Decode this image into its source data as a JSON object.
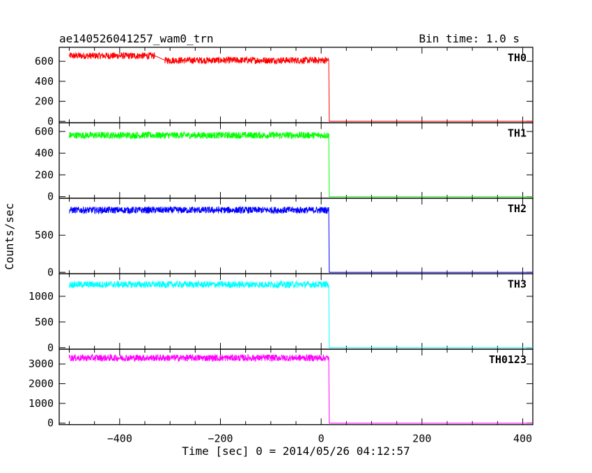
{
  "chart_data": {
    "type": "line",
    "title": "ae140526041257_wam0_trn",
    "subtitle": "Bin time: 1.0 s",
    "xlabel": "Time [sec] 0 = 2014/05/26 04:12:57",
    "ylabel": "Counts/sec",
    "xlim": [
      -520,
      420
    ],
    "x_ticks": [
      "−400",
      "−200",
      "0",
      "200",
      "400"
    ],
    "x_tick_values": [
      -400,
      -200,
      0,
      200,
      400
    ],
    "grid": false,
    "panels": [
      {
        "name": "TH0",
        "color": "#ff0000",
        "ylim": [
          -15,
          740
        ],
        "y_ticks": [
          "0",
          "200",
          "400",
          "600"
        ],
        "y_tick_values": [
          0,
          200,
          400,
          600
        ],
        "series": {
          "name": "TH0",
          "x": [
            -500,
            -330,
            -310,
            15,
            16,
            420
          ],
          "y": [
            655,
            655,
            610,
            610,
            0,
            0
          ]
        }
      },
      {
        "name": "TH1",
        "color": "#00ff00",
        "ylim": [
          -15,
          680
        ],
        "y_ticks": [
          "0",
          "200",
          "400",
          "600"
        ],
        "y_tick_values": [
          0,
          200,
          400,
          600
        ],
        "series": {
          "name": "TH1",
          "x": [
            -500,
            15,
            16,
            420
          ],
          "y": [
            565,
            565,
            0,
            0
          ]
        }
      },
      {
        "name": "TH2",
        "color": "#0000ff",
        "ylim": [
          -20,
          1000
        ],
        "y_ticks": [
          "0",
          "500"
        ],
        "y_tick_values": [
          0,
          500
        ],
        "series": {
          "name": "TH2",
          "x": [
            -500,
            15,
            16,
            420
          ],
          "y": [
            840,
            840,
            0,
            0
          ]
        }
      },
      {
        "name": "TH3",
        "color": "#00ffff",
        "ylim": [
          -30,
          1440
        ],
        "y_ticks": [
          "0",
          "500",
          "1000"
        ],
        "y_tick_values": [
          0,
          500,
          1000
        ],
        "series": {
          "name": "TH3",
          "x": [
            -500,
            15,
            16,
            420
          ],
          "y": [
            1230,
            1230,
            0,
            0
          ]
        }
      },
      {
        "name": "TH0123",
        "color": "#ff00ff",
        "ylim": [
          -80,
          3750
        ],
        "y_ticks": [
          "0",
          "1000",
          "2000",
          "3000"
        ],
        "y_tick_values": [
          0,
          1000,
          2000,
          3000
        ],
        "series": {
          "name": "TH0123",
          "x": [
            -500,
            15,
            16,
            420
          ],
          "y": [
            3310,
            3310,
            0,
            0
          ]
        }
      }
    ]
  }
}
